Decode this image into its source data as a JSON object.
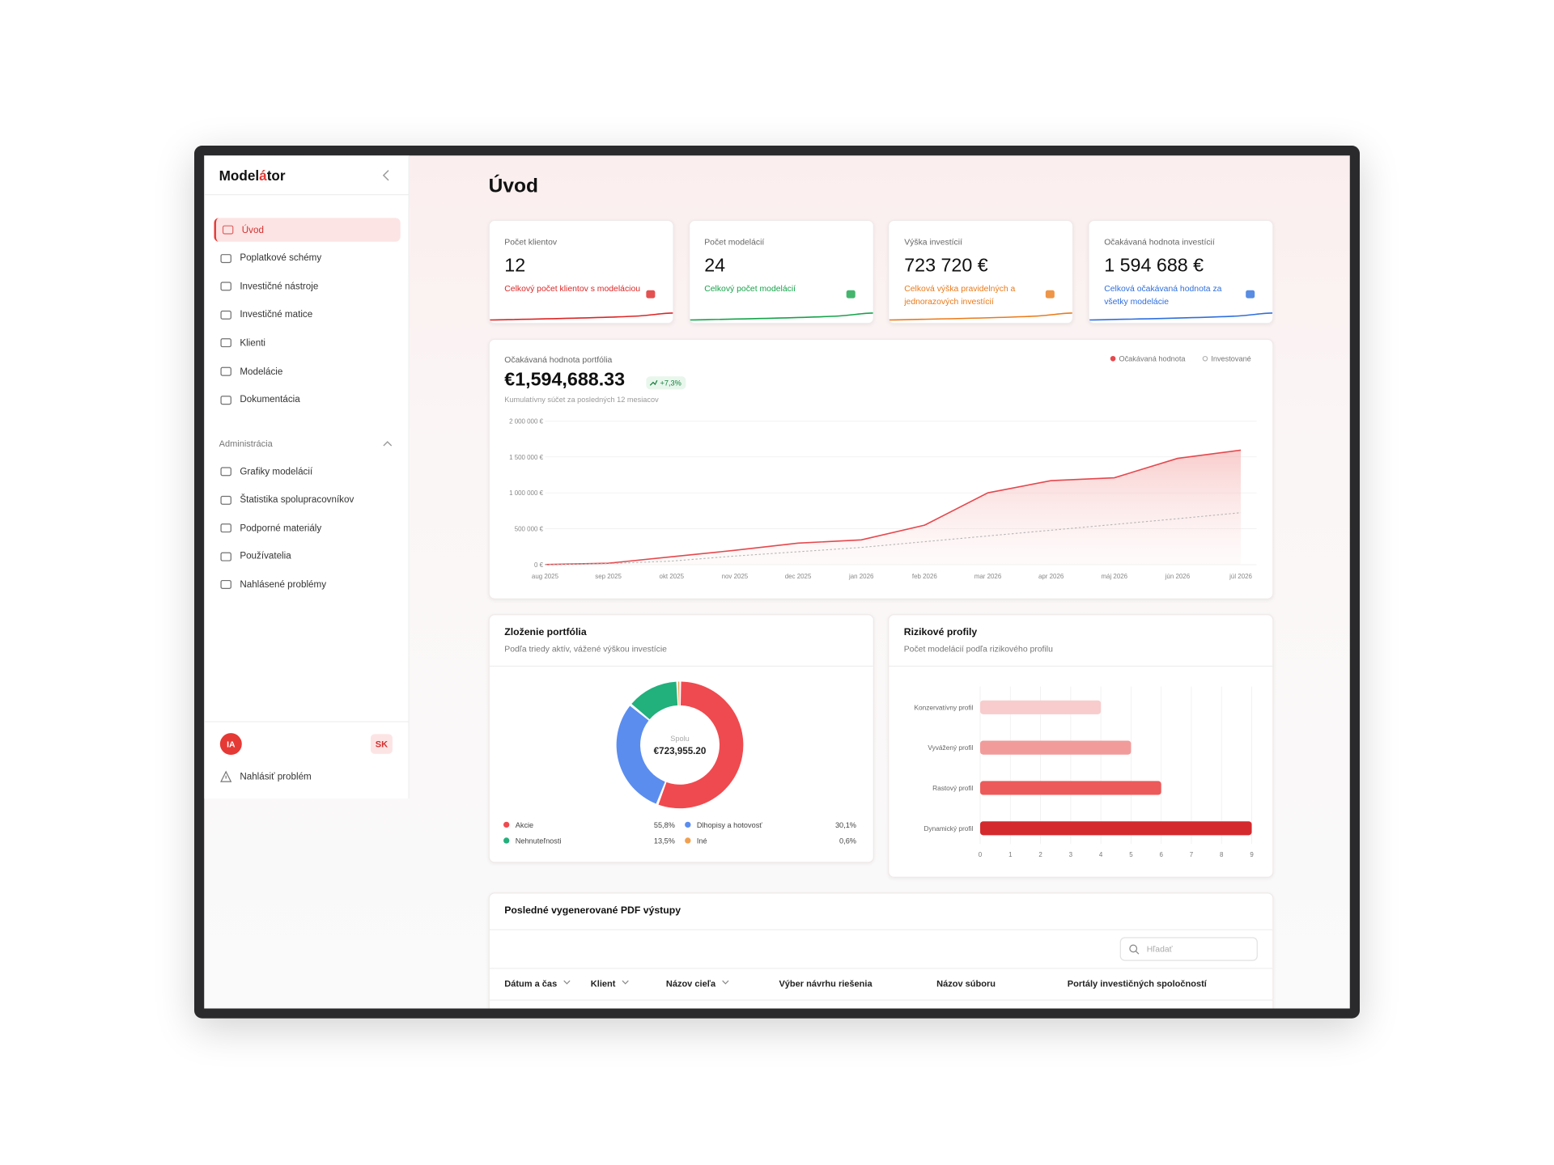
{
  "sidebar": {
    "brand": {
      "start": "Model",
      "accent": "á",
      "end": "tor"
    },
    "nav": [
      "Úvod",
      "Poplatkové schémy",
      "Investičné nástroje",
      "Investičné matice",
      "Klienti",
      "Modelácie",
      "Dokumentácia"
    ],
    "admin_title": "Administrácia",
    "admin_nav": [
      "Grafiky modelácií",
      "Štatistika spolupracovníkov",
      "Podporné materiály",
      "Používatelia",
      "Nahlásené problémy"
    ],
    "user_initials": "IA",
    "language": "SK",
    "report_problem": "Nahlásiť problém"
  },
  "page_title": "Úvod",
  "kpis": [
    {
      "label": "Počet klientov",
      "value": "12",
      "description": "Celkový počet klientov s modeláciou",
      "color": "#dc2626"
    },
    {
      "label": "Počet modelácií",
      "value": "24",
      "description": "Celkový počet modelácií",
      "color": "#16a34a"
    },
    {
      "label": "Výška investícií",
      "value": "723 720 €",
      "description": "Celková výška pravidelných a jednorazových investícií",
      "color": "#ea7a1a"
    },
    {
      "label": "Očakávaná hodnota investícií",
      "value": "1 594 688 €",
      "description": "Celková očakávaná hodnota za všetky modelácie",
      "color": "#2f6fdc"
    }
  ],
  "portfolio_chart": {
    "type": "line",
    "title": "Očakávaná hodnota portfólia",
    "value": "€1,594,688.33",
    "change": "+7,3%",
    "subtitle": "Kumulatívny súčet za posledných 12 mesiacov",
    "categories": [
      "aug 2025",
      "sep 2025",
      "okt 2025",
      "nov 2025",
      "dec 2025",
      "jan 2026",
      "feb 2026",
      "mar 2026",
      "apr 2026",
      "máj 2026",
      "jún 2026",
      "júl 2026"
    ],
    "series": [
      {
        "name": "Očakávaná hodnota",
        "color": "#e5484d",
        "values": [
          2000,
          20000,
          110000,
          200000,
          300000,
          345000,
          550000,
          1000000,
          1170000,
          1210000,
          1480000,
          1594688
        ]
      },
      {
        "name": "Investované",
        "color": "#b5b5b5",
        "values": [
          0,
          15000,
          50000,
          120000,
          180000,
          240000,
          320000,
          400000,
          480000,
          560000,
          640000,
          723720
        ]
      }
    ],
    "ylim": [
      0,
      2000000
    ],
    "yticks": [
      {
        "value": 0,
        "label": "0 €"
      },
      {
        "value": 500000,
        "label": "500 000 €"
      },
      {
        "value": 1000000,
        "label": "1 000 000 €"
      },
      {
        "value": 1500000,
        "label": "1 500 000 €"
      },
      {
        "value": 2000000,
        "label": "2 000 000 €"
      }
    ],
    "grid": true
  },
  "composition_chart": {
    "type": "pie",
    "title": "Zloženie portfólia",
    "subtitle": "Podľa triedy aktív, vážené výškou investície",
    "center_label": "Spolu",
    "center_value": "€723,955.20",
    "categories": [
      "Akcie",
      "Dlhopisy a hotovosť",
      "Nehnuteľnosti",
      "Iné"
    ],
    "values": [
      55.8,
      30.1,
      13.5,
      0.6
    ],
    "value_labels": [
      "55,8%",
      "30,1%",
      "13,5%",
      "0,6%"
    ],
    "colors": [
      "#ef4a4f",
      "#5b8def",
      "#22b07d",
      "#f0a050"
    ]
  },
  "risk_chart": {
    "type": "bar",
    "title": "Rizikové profily",
    "subtitle": "Počet modelácií podľa rizikového profilu",
    "categories": [
      "Konzervatívny profil",
      "Vyvážený profil",
      "Rastový profil",
      "Dynamický profil"
    ],
    "values": [
      4,
      5,
      6,
      9
    ],
    "colors": [
      "#f8cccc",
      "#f29b9b",
      "#ec5a5a",
      "#d42a2d"
    ],
    "xlim": [
      0,
      9
    ],
    "xticks": [
      0,
      1,
      2,
      3,
      4,
      5,
      6,
      7,
      8,
      9
    ],
    "grid": true
  },
  "table": {
    "title": "Posledné vygenerované PDF výstupy",
    "search_placeholder": "Hľadať",
    "columns": [
      "Dátum a čas",
      "Klient",
      "Názov cieľa",
      "Výber návrhu riešenia",
      "Názov súboru",
      "Portály investičných spoločností"
    ]
  }
}
